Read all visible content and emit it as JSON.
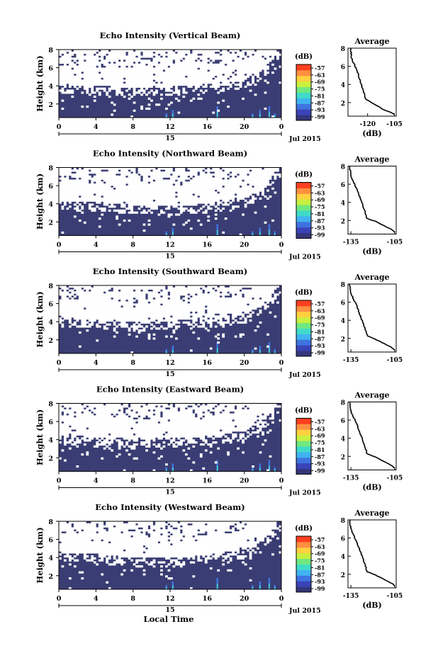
{
  "figure": {
    "shared_xlabel": "Local Time",
    "colors": {
      "background": "#3a3d73",
      "cbar": [
        "#35367a",
        "#3a44b8",
        "#3f73e0",
        "#40b3f0",
        "#40dbc8",
        "#70e880",
        "#c8f040",
        "#ffd040",
        "#ff9040",
        "#ff4020"
      ]
    }
  },
  "chart_data": [
    {
      "type": "heatmap",
      "title": "Echo Intensity (Vertical Beam)",
      "ylabel": "Height (km)",
      "yticks": [
        "2",
        "4",
        "6",
        "8"
      ],
      "ylim": [
        0.5,
        8
      ],
      "xticks": [
        "0",
        "4",
        "8",
        "12",
        "16",
        "20",
        "0"
      ],
      "xlim": [
        0,
        24
      ],
      "date_tick": "15",
      "date_label": "Jul 2015",
      "cbar_unit": "(dB)",
      "cbar_ticks": [
        "-57",
        "-63",
        "-69",
        "-75",
        "-81",
        "-87",
        "-93",
        "-99"
      ],
      "no_echo_boundary_km": [
        [
          0,
          3.7
        ],
        [
          4,
          3.6
        ],
        [
          8,
          3.4
        ],
        [
          12,
          3.5
        ],
        [
          16,
          3.8
        ],
        [
          20,
          4.3
        ],
        [
          22,
          5.5
        ],
        [
          24,
          8
        ]
      ],
      "inset": {
        "title": "Average",
        "xlabel": "(dB)",
        "xticks": [
          "-120",
          "-105"
        ],
        "xlim": [
          -131,
          -104
        ],
        "yticks": [
          "2",
          "4",
          "6",
          "8"
        ],
        "ylim": [
          0.5,
          8
        ],
        "profile": [
          [
            -129.5,
            8
          ],
          [
            -129,
            7
          ],
          [
            -128,
            6.4
          ],
          [
            -126,
            5.6
          ],
          [
            -124.5,
            4.6
          ],
          [
            -123,
            3.6
          ],
          [
            -121.5,
            2.7
          ],
          [
            -121,
            2.4
          ],
          [
            -116,
            1.8
          ],
          [
            -111,
            1.2
          ],
          [
            -107,
            0.9
          ],
          [
            -105,
            0.7
          ]
        ]
      }
    },
    {
      "type": "heatmap",
      "title": "Echo Intensity (Northward Beam)",
      "ylabel": "Height (km)",
      "yticks": [
        "2",
        "4",
        "6",
        "8"
      ],
      "ylim": [
        0.5,
        8
      ],
      "xticks": [
        "0",
        "4",
        "8",
        "12",
        "16",
        "20",
        "0"
      ],
      "xlim": [
        0,
        24
      ],
      "date_tick": "15",
      "date_label": "Jul 2015",
      "cbar_unit": "(dB)",
      "cbar_ticks": [
        "-57",
        "-63",
        "-69",
        "-75",
        "-81",
        "-87",
        "-93",
        "-99"
      ],
      "no_echo_boundary_km": [
        [
          0,
          3.9
        ],
        [
          4,
          3.8
        ],
        [
          8,
          3.5
        ],
        [
          12,
          3.4
        ],
        [
          16,
          3.6
        ],
        [
          20,
          4.2
        ],
        [
          22,
          5.2
        ],
        [
          24,
          8
        ]
      ],
      "inset": {
        "title": "Average",
        "xlabel": "(dB)",
        "xticks": [
          "-135",
          "-105"
        ],
        "xlim": [
          -137,
          -104
        ],
        "yticks": [
          "2",
          "4",
          "6",
          "8"
        ],
        "ylim": [
          0.5,
          8
        ],
        "profile": [
          [
            -136,
            8
          ],
          [
            -135,
            7
          ],
          [
            -133.5,
            6.3
          ],
          [
            -131,
            5.5
          ],
          [
            -129,
            4.6
          ],
          [
            -127,
            3.7
          ],
          [
            -125,
            2.8
          ],
          [
            -124,
            2.2
          ],
          [
            -118,
            1.9
          ],
          [
            -112,
            1.4
          ],
          [
            -107,
            1
          ],
          [
            -105,
            0.7
          ]
        ]
      }
    },
    {
      "type": "heatmap",
      "title": "Echo Intensity (Southward Beam)",
      "ylabel": "Height (km)",
      "yticks": [
        "2",
        "4",
        "6",
        "8"
      ],
      "ylim": [
        0.5,
        8
      ],
      "xticks": [
        "0",
        "4",
        "8",
        "12",
        "16",
        "20",
        "0"
      ],
      "xlim": [
        0,
        24
      ],
      "date_tick": "15",
      "date_label": "Jul 2015",
      "cbar_unit": "(dB)",
      "cbar_ticks": [
        "-57",
        "-63",
        "-69",
        "-75",
        "-81",
        "-87",
        "-93",
        "-99"
      ],
      "no_echo_boundary_km": [
        [
          0,
          4.0
        ],
        [
          4,
          3.9
        ],
        [
          8,
          3.6
        ],
        [
          12,
          3.7
        ],
        [
          16,
          3.9
        ],
        [
          20,
          4.4
        ],
        [
          22,
          5.4
        ],
        [
          24,
          8
        ]
      ],
      "inset": {
        "title": "Average",
        "xlabel": "",
        "xticks": [
          "-135",
          "-105"
        ],
        "xlim": [
          -137,
          -104
        ],
        "yticks": [
          "2",
          "4",
          "6",
          "8"
        ],
        "ylim": [
          0.5,
          8
        ],
        "profile": [
          [
            -136,
            8
          ],
          [
            -135,
            7
          ],
          [
            -133.5,
            6.4
          ],
          [
            -131,
            5.6
          ],
          [
            -129,
            4.7
          ],
          [
            -127,
            3.8
          ],
          [
            -125,
            2.9
          ],
          [
            -124,
            2.3
          ],
          [
            -118,
            1.9
          ],
          [
            -112,
            1.4
          ],
          [
            -107,
            1
          ],
          [
            -105,
            0.7
          ]
        ]
      }
    },
    {
      "type": "heatmap",
      "title": "Echo Intensity (Eastward Beam)",
      "ylabel": "Height (km)",
      "yticks": [
        "2",
        "4",
        "6",
        "8"
      ],
      "ylim": [
        0.5,
        8
      ],
      "xticks": [
        "0",
        "4",
        "8",
        "12",
        "16",
        "20",
        "0"
      ],
      "xlim": [
        0,
        24
      ],
      "date_tick": "15",
      "date_label": "Jul 2015",
      "cbar_unit": "(dB)",
      "cbar_ticks": [
        "-57",
        "-63",
        "-69",
        "-75",
        "-81",
        "-87",
        "-93",
        "-99"
      ],
      "no_echo_boundary_km": [
        [
          0,
          4.1
        ],
        [
          4,
          3.9
        ],
        [
          8,
          3.7
        ],
        [
          12,
          3.8
        ],
        [
          16,
          4.0
        ],
        [
          20,
          4.6
        ],
        [
          22,
          5.6
        ],
        [
          24,
          8
        ]
      ],
      "inset": {
        "title": "Average",
        "xlabel": "(dB)",
        "xticks": [
          "-135",
          "-105"
        ],
        "xlim": [
          -137,
          -104
        ],
        "yticks": [
          "2",
          "4",
          "6",
          "8"
        ],
        "ylim": [
          0.5,
          8
        ],
        "profile": [
          [
            -136,
            8
          ],
          [
            -135,
            7
          ],
          [
            -133.5,
            6.4
          ],
          [
            -131,
            5.6
          ],
          [
            -129,
            4.7
          ],
          [
            -127,
            3.8
          ],
          [
            -125,
            2.9
          ],
          [
            -124,
            2.3
          ],
          [
            -118,
            1.9
          ],
          [
            -112,
            1.4
          ],
          [
            -107,
            1
          ],
          [
            -105,
            0.7
          ]
        ]
      }
    },
    {
      "type": "heatmap",
      "title": "Echo Intensity (Westward Beam)",
      "ylabel": "Height (km)",
      "yticks": [
        "2",
        "4",
        "6",
        "8"
      ],
      "ylim": [
        0.5,
        8
      ],
      "xticks": [
        "0",
        "4",
        "8",
        "12",
        "16",
        "20",
        "0"
      ],
      "xlim": [
        0,
        24
      ],
      "date_tick": "15",
      "date_label": "Jul 2015",
      "cbar_unit": "(dB)",
      "cbar_ticks": [
        "-57",
        "-63",
        "-69",
        "-75",
        "-81",
        "-87",
        "-93",
        "-99"
      ],
      "no_echo_boundary_km": [
        [
          0,
          4.2
        ],
        [
          4,
          4.0
        ],
        [
          8,
          3.6
        ],
        [
          12,
          3.6
        ],
        [
          16,
          3.9
        ],
        [
          20,
          4.5
        ],
        [
          22,
          5.5
        ],
        [
          24,
          8
        ]
      ],
      "inset": {
        "title": "Average",
        "xlabel": "(dB)",
        "xticks": [
          "-135",
          "-105"
        ],
        "xlim": [
          -137,
          -104
        ],
        "yticks": [
          "2",
          "4",
          "6",
          "8"
        ],
        "ylim": [
          0.5,
          8
        ],
        "profile": [
          [
            -136,
            8
          ],
          [
            -135,
            7
          ],
          [
            -133.5,
            6.4
          ],
          [
            -131,
            5.6
          ],
          [
            -129,
            4.7
          ],
          [
            -127,
            3.8
          ],
          [
            -125,
            2.9
          ],
          [
            -124,
            2.3
          ],
          [
            -118,
            1.9
          ],
          [
            -112,
            1.4
          ],
          [
            -107,
            1
          ],
          [
            -105,
            0.7
          ]
        ]
      }
    }
  ]
}
